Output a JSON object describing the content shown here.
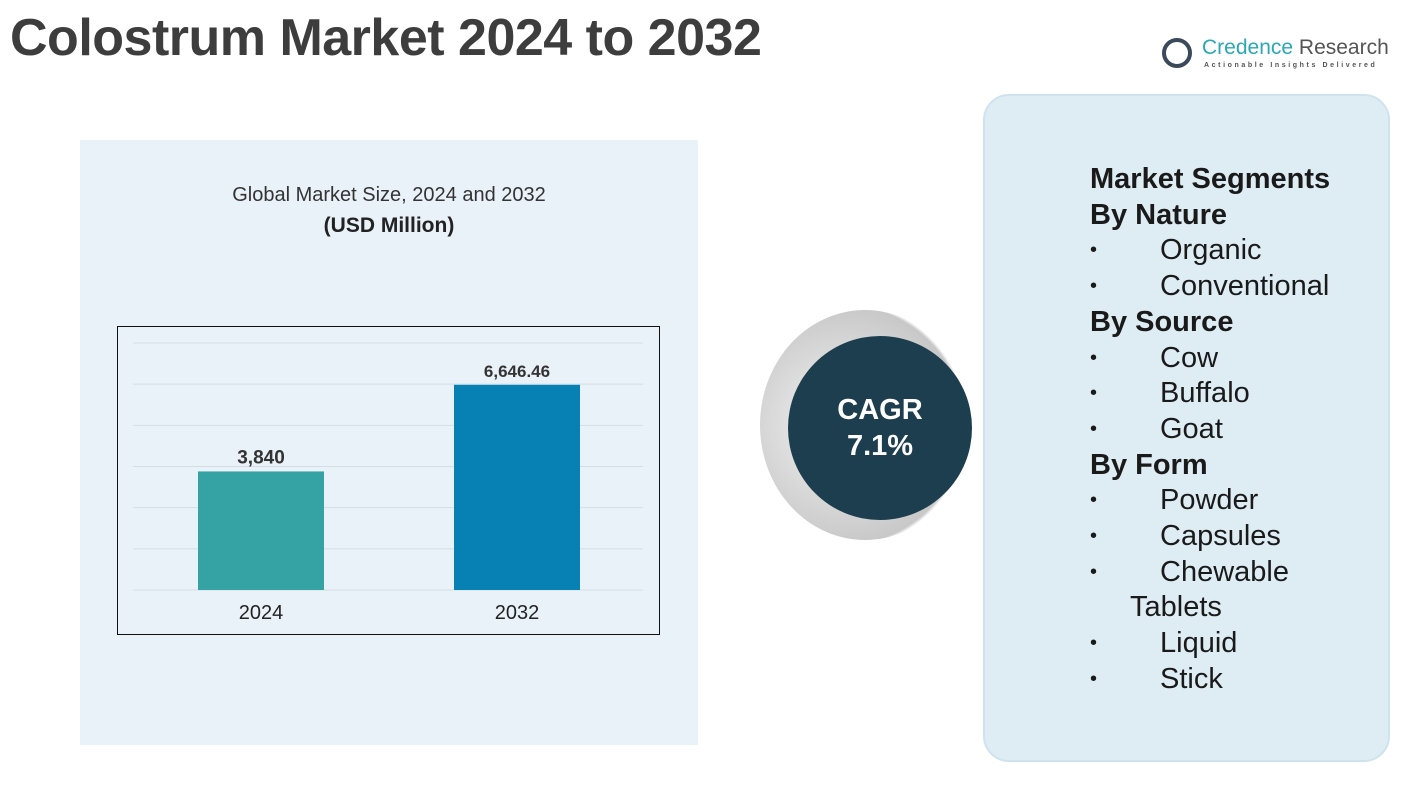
{
  "title": "Colostrum Market 2024 to 2032",
  "logo": {
    "name_a": "Credence",
    "name_b": " Research",
    "tagline": "Actionable Insights Delivered"
  },
  "chart_data": {
    "type": "bar",
    "title": "Global Market Size, 2024 and 2032",
    "subtitle": "(USD Million)",
    "categories": [
      "2024",
      "2032"
    ],
    "values": [
      3840,
      6646.46
    ],
    "labels": [
      "3,840",
      "6,646.46"
    ],
    "colors": [
      "#35a3a3",
      "#0781b4"
    ],
    "ylim": [
      0,
      8000
    ],
    "grid": true
  },
  "cagr": {
    "label": "CAGR",
    "value": "7.1%"
  },
  "segments": {
    "heading": "Market Segments",
    "groups": [
      {
        "title": "By Nature",
        "items": [
          "Organic",
          "Conventional"
        ]
      },
      {
        "title": "By Source",
        "items": [
          "Cow",
          "Buffalo",
          "Goat"
        ]
      },
      {
        "title": "By Form",
        "items": [
          "Powder",
          "Capsules",
          "Chewable",
          "Liquid",
          "Stick"
        ],
        "continuation": "Tablets"
      }
    ]
  }
}
